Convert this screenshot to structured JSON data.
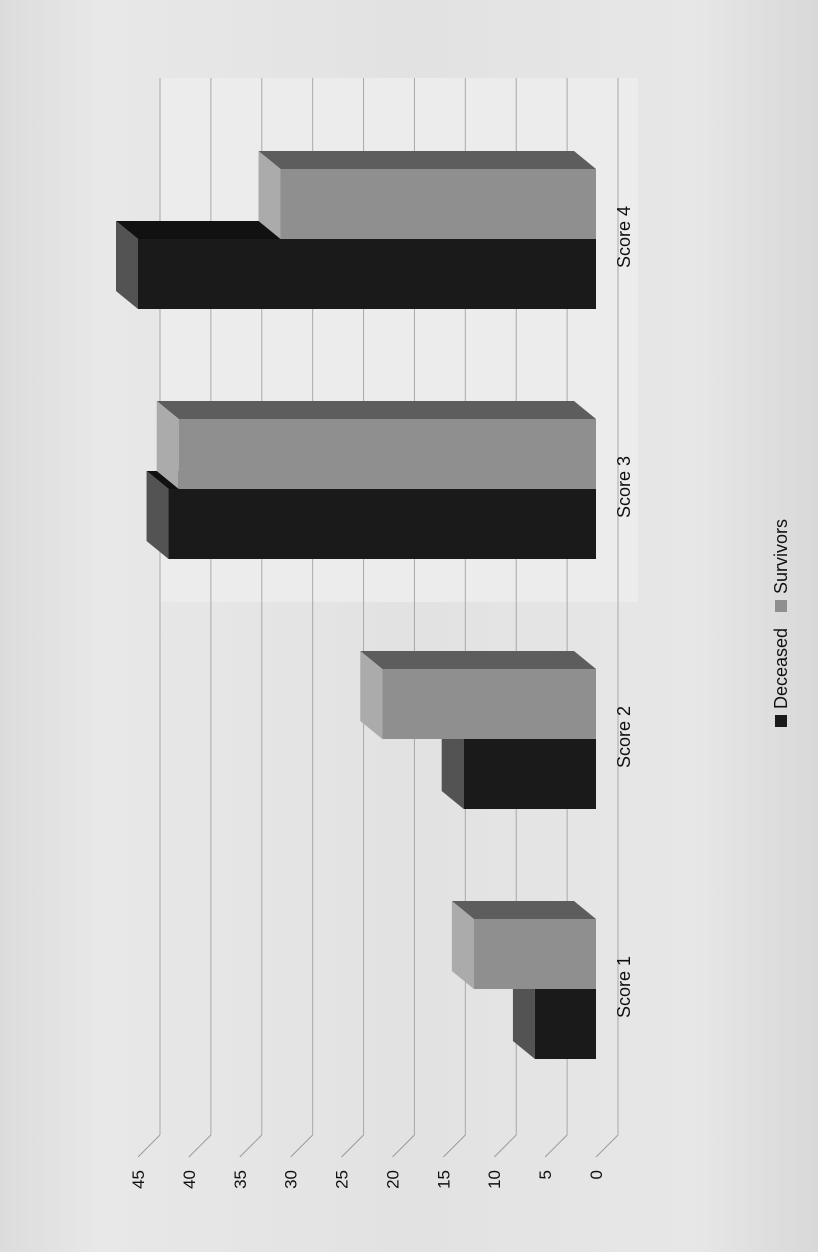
{
  "chart_data": {
    "type": "bar",
    "title": "",
    "xlabel": "",
    "ylabel": "",
    "categories": [
      "Score 1",
      "Score 2",
      "Score 3",
      "Score 4"
    ],
    "series": [
      {
        "name": "Deceased",
        "values": [
          6,
          13,
          42,
          45
        ],
        "color": "#1a1a1a"
      },
      {
        "name": "Survivors",
        "values": [
          12,
          21,
          41,
          31
        ],
        "color": "#8f8f8f"
      }
    ],
    "ylim": [
      0,
      45
    ],
    "yticks": [
      "0",
      "5",
      "10",
      "15",
      "20",
      "25",
      "30",
      "35",
      "40",
      "45"
    ],
    "grid": true,
    "legend_position": "bottom",
    "style": "3d-clustered-column"
  }
}
